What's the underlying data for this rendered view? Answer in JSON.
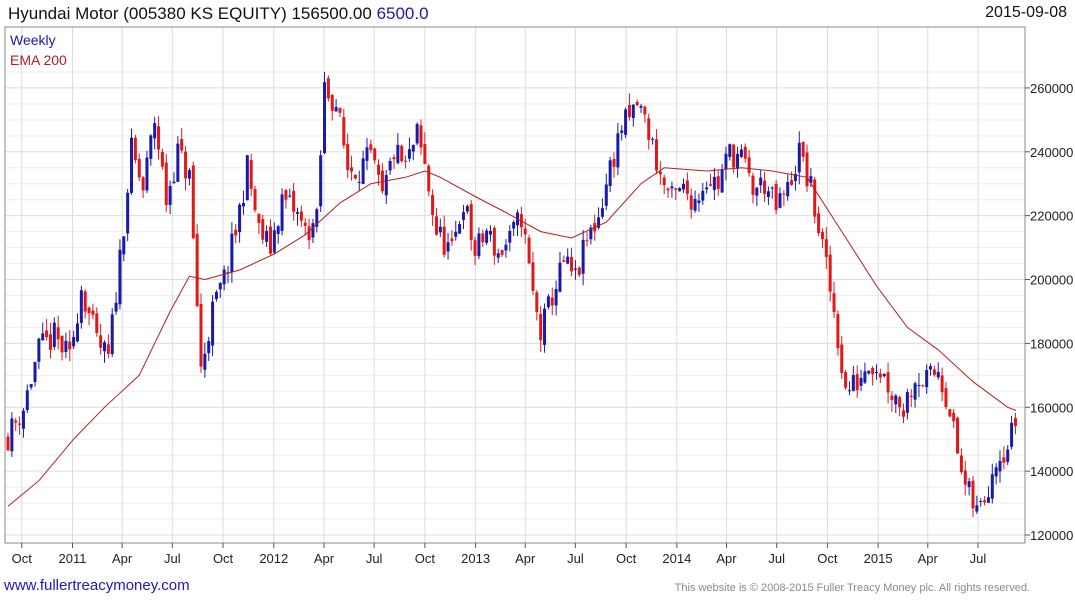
{
  "header": {
    "title": "Hyundai Motor (005380 KS EQUITY) 156500.00",
    "change": "6500.0",
    "date": "2015-09-08"
  },
  "footer": {
    "website": "www.fullertreacymoney.com",
    "copyright": "This website is © 2008-2015 Fuller Treacy Money plc. All rights reserved."
  },
  "chart_data": {
    "type": "candlestick",
    "periodicity": "Weekly",
    "legend": [
      {
        "name": "Weekly",
        "color": "#1a1aa8"
      },
      {
        "name": "EMA 200",
        "color": "#b02020"
      }
    ],
    "legend_position": "top-left",
    "y_axis": {
      "side": "right",
      "range": [
        120000,
        270000
      ],
      "ticks": [
        120000,
        140000,
        160000,
        180000,
        200000,
        220000,
        240000,
        260000
      ]
    },
    "x_axis": {
      "range": [
        "2010-09-06",
        "2015-09-08"
      ],
      "ticks": [
        {
          "label": "Oct",
          "date": "2010-10-01"
        },
        {
          "label": "2011",
          "date": "2011-01-01"
        },
        {
          "label": "Apr",
          "date": "2011-04-01"
        },
        {
          "label": "Jul",
          "date": "2011-07-01"
        },
        {
          "label": "Oct",
          "date": "2011-10-01"
        },
        {
          "label": "2012",
          "date": "2012-01-01"
        },
        {
          "label": "Apr",
          "date": "2012-04-01"
        },
        {
          "label": "Jul",
          "date": "2012-07-01"
        },
        {
          "label": "Oct",
          "date": "2012-10-01"
        },
        {
          "label": "2013",
          "date": "2013-01-01"
        },
        {
          "label": "Apr",
          "date": "2013-04-01"
        },
        {
          "label": "Jul",
          "date": "2013-07-01"
        },
        {
          "label": "Oct",
          "date": "2013-10-01"
        },
        {
          "label": "2014",
          "date": "2014-01-01"
        },
        {
          "label": "Apr",
          "date": "2014-04-01"
        },
        {
          "label": "Jul",
          "date": "2014-07-01"
        },
        {
          "label": "Oct",
          "date": "2014-10-01"
        },
        {
          "label": "2015",
          "date": "2015-01-01"
        },
        {
          "label": "Apr",
          "date": "2015-04-01"
        },
        {
          "label": "Jul",
          "date": "2015-07-01"
        }
      ]
    },
    "grid": true,
    "colors": {
      "up": "#1a1aa8",
      "down": "#e01818",
      "ema": "#b02020",
      "grid": "#dcdcdc"
    },
    "close_path": [
      [
        "2010-09-06",
        151000
      ],
      [
        "2010-10-04",
        160000
      ],
      [
        "2010-11-01",
        178000
      ],
      [
        "2010-11-29",
        182000
      ],
      [
        "2010-12-27",
        175000
      ],
      [
        "2011-01-17",
        198000
      ],
      [
        "2011-02-14",
        180000
      ],
      [
        "2011-03-07",
        175000
      ],
      [
        "2011-03-28",
        207000
      ],
      [
        "2011-04-18",
        240000
      ],
      [
        "2011-05-09",
        228000
      ],
      [
        "2011-05-30",
        250000
      ],
      [
        "2011-06-20",
        225000
      ],
      [
        "2011-07-11",
        240000
      ],
      [
        "2011-08-01",
        232000
      ],
      [
        "2011-08-15",
        192000
      ],
      [
        "2011-08-22",
        172000
      ],
      [
        "2011-09-12",
        190000
      ],
      [
        "2011-10-03",
        200000
      ],
      [
        "2011-10-24",
        215000
      ],
      [
        "2011-11-14",
        235000
      ],
      [
        "2011-12-05",
        215000
      ],
      [
        "2011-12-26",
        210000
      ],
      [
        "2012-01-16",
        225000
      ],
      [
        "2012-02-06",
        222000
      ],
      [
        "2012-02-27",
        215000
      ],
      [
        "2012-03-19",
        218000
      ],
      [
        "2012-04-02",
        260000
      ],
      [
        "2012-04-23",
        255000
      ],
      [
        "2012-05-14",
        235000
      ],
      [
        "2012-06-04",
        235000
      ],
      [
        "2012-06-25",
        238000
      ],
      [
        "2012-07-16",
        225000
      ],
      [
        "2012-08-06",
        240000
      ],
      [
        "2012-08-27",
        235000
      ],
      [
        "2012-09-17",
        245000
      ],
      [
        "2012-10-01",
        235000
      ],
      [
        "2012-10-22",
        215000
      ],
      [
        "2012-11-19",
        208000
      ],
      [
        "2012-12-10",
        225000
      ],
      [
        "2012-12-31",
        208000
      ],
      [
        "2013-01-21",
        215000
      ],
      [
        "2013-02-11",
        208000
      ],
      [
        "2013-03-04",
        212000
      ],
      [
        "2013-03-25",
        220000
      ],
      [
        "2013-04-15",
        195000
      ],
      [
        "2013-04-29",
        183000
      ],
      [
        "2013-05-20",
        195000
      ],
      [
        "2013-06-10",
        205000
      ],
      [
        "2013-07-01",
        200000
      ],
      [
        "2013-07-22",
        212000
      ],
      [
        "2013-08-12",
        220000
      ],
      [
        "2013-09-02",
        235000
      ],
      [
        "2013-09-23",
        248000
      ],
      [
        "2013-10-07",
        250000
      ],
      [
        "2013-10-21",
        255000
      ],
      [
        "2013-11-04",
        250000
      ],
      [
        "2013-11-18",
        242000
      ],
      [
        "2013-12-02",
        232000
      ],
      [
        "2013-12-23",
        225000
      ],
      [
        "2014-01-13",
        228000
      ],
      [
        "2014-02-03",
        225000
      ],
      [
        "2014-02-24",
        232000
      ],
      [
        "2014-03-17",
        230000
      ],
      [
        "2014-04-07",
        240000
      ],
      [
        "2014-04-28",
        238000
      ],
      [
        "2014-05-19",
        228000
      ],
      [
        "2014-06-09",
        230000
      ],
      [
        "2014-06-30",
        222000
      ],
      [
        "2014-07-21",
        228000
      ],
      [
        "2014-08-11",
        240000
      ],
      [
        "2014-09-01",
        228000
      ],
      [
        "2014-09-22",
        210000
      ],
      [
        "2014-10-13",
        190000
      ],
      [
        "2014-11-03",
        165000
      ],
      [
        "2014-11-24",
        168000
      ],
      [
        "2014-12-15",
        175000
      ],
      [
        "2015-01-05",
        172000
      ],
      [
        "2015-01-26",
        165000
      ],
      [
        "2015-02-16",
        160000
      ],
      [
        "2015-03-09",
        170000
      ],
      [
        "2015-03-30",
        168000
      ],
      [
        "2015-04-20",
        172000
      ],
      [
        "2015-05-11",
        160000
      ],
      [
        "2015-05-25",
        145000
      ],
      [
        "2015-06-08",
        135000
      ],
      [
        "2015-06-29",
        127000
      ],
      [
        "2015-07-13",
        132000
      ],
      [
        "2015-08-03",
        145000
      ],
      [
        "2015-08-24",
        148000
      ],
      [
        "2015-09-08",
        156500
      ]
    ],
    "ema_200": [
      [
        "2010-09-06",
        129000
      ],
      [
        "2010-11-01",
        137000
      ],
      [
        "2011-01-03",
        150000
      ],
      [
        "2011-02-28",
        160000
      ],
      [
        "2011-05-02",
        170000
      ],
      [
        "2011-06-27",
        190000
      ],
      [
        "2011-08-01",
        201000
      ],
      [
        "2011-08-29",
        200000
      ],
      [
        "2011-10-31",
        203000
      ],
      [
        "2012-01-02",
        208000
      ],
      [
        "2012-02-27",
        214000
      ],
      [
        "2012-04-30",
        224000
      ],
      [
        "2012-06-25",
        230000
      ],
      [
        "2012-08-27",
        232000
      ],
      [
        "2012-10-01",
        234000
      ],
      [
        "2012-10-29",
        232000
      ],
      [
        "2012-12-31",
        226000
      ],
      [
        "2013-02-25",
        221000
      ],
      [
        "2013-04-29",
        215000
      ],
      [
        "2013-06-24",
        213000
      ],
      [
        "2013-08-26",
        218000
      ],
      [
        "2013-10-28",
        230000
      ],
      [
        "2013-12-09",
        235000
      ],
      [
        "2014-02-24",
        234000
      ],
      [
        "2014-04-28",
        235000
      ],
      [
        "2014-06-23",
        234000
      ],
      [
        "2014-08-25",
        232000
      ],
      [
        "2014-10-27",
        215000
      ],
      [
        "2014-12-29",
        198000
      ],
      [
        "2015-02-23",
        185000
      ],
      [
        "2015-04-20",
        178000
      ],
      [
        "2015-06-22",
        168000
      ],
      [
        "2015-08-24",
        160000
      ],
      [
        "2015-09-08",
        159000
      ]
    ]
  }
}
